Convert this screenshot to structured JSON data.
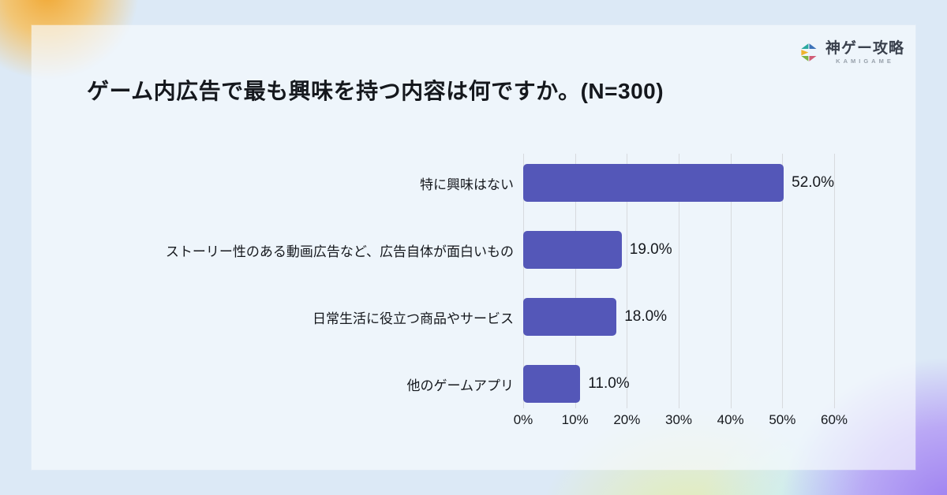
{
  "logo": {
    "brand": "神ゲー攻略",
    "sub": "KAMIGAME",
    "icon_colors": {
      "teal": "#2aa9a0",
      "blue": "#3c72b9",
      "yellow": "#efb32c",
      "green": "#7cb342",
      "crimson": "#d15c76"
    }
  },
  "title": "ゲーム内広告で最も興味を持つ内容は何ですか。(N=300)",
  "chart_data": {
    "type": "bar",
    "orientation": "horizontal",
    "title": "ゲーム内広告で最も興味を持つ内容は何ですか。(N=300)",
    "sample_size_note": "N=300",
    "categories": [
      "特に興味はない",
      "ストーリー性のある動画広告など、広告自体が面白いもの",
      "日常生活に役立つ商品やサービス",
      "他のゲームアプリ"
    ],
    "values": [
      52.0,
      19.0,
      18.0,
      11.0
    ],
    "value_labels": [
      "52.0%",
      "19.0%",
      "18.0%",
      "11.0%"
    ],
    "xticks": [
      "0%",
      "10%",
      "20%",
      "30%",
      "40%",
      "50%",
      "60%"
    ],
    "xtick_values": [
      0,
      10,
      20,
      30,
      40,
      50,
      60
    ],
    "xlim": [
      0,
      60
    ],
    "xlabel": "",
    "ylabel": "",
    "grid": true,
    "gridline_color": "#d7dade",
    "bar_color": "#5457b8",
    "legend": null
  }
}
